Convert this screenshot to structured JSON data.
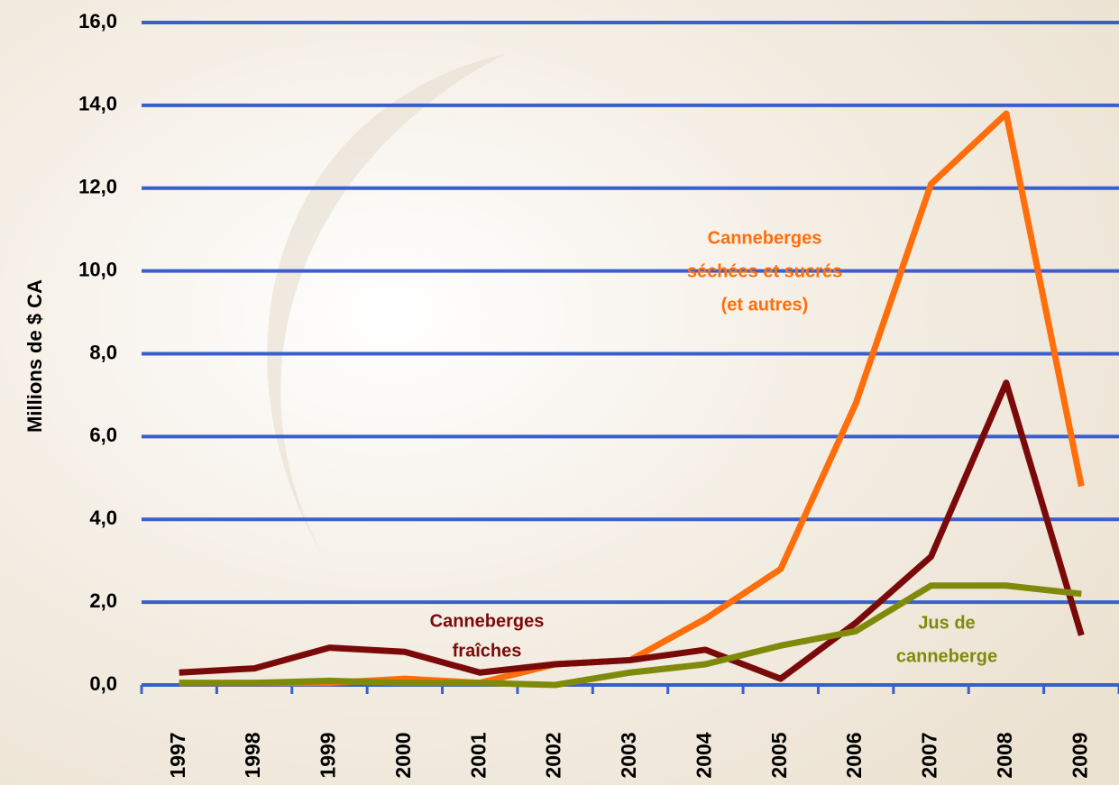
{
  "chart_data": {
    "type": "line",
    "y_label": "Millions de $ CA",
    "categories": [
      "1997",
      "1998",
      "1999",
      "2000",
      "2001",
      "2002",
      "2003",
      "2004",
      "2005",
      "2006",
      "2007",
      "2008",
      "2009"
    ],
    "series": [
      {
        "color": "#ff6e0a",
        "values": [
          0.05,
          0.05,
          0.05,
          0.15,
          0.05,
          0.5,
          0.6,
          1.6,
          2.8,
          6.8,
          12.1,
          13.8,
          4.8
        ]
      },
      {
        "color": "#7a0a0a",
        "values": [
          0.3,
          0.4,
          0.9,
          0.8,
          0.3,
          0.5,
          0.6,
          0.85,
          0.15,
          1.5,
          3.1,
          7.3,
          1.2
        ]
      },
      {
        "color": "#7f8a0a",
        "values": [
          0.05,
          0.05,
          0.1,
          0.05,
          0.05,
          0.0,
          0.3,
          0.5,
          0.95,
          1.3,
          2.4,
          2.4,
          2.2
        ]
      }
    ],
    "annotations": [
      {
        "color": "#ff6e0a",
        "lines": [
          "Canneberges",
          "séchées et sucrés",
          "(et autres)"
        ]
      },
      {
        "color": "#7a0a0a",
        "lines": [
          "Canneberges",
          "fraîches"
        ]
      },
      {
        "color": "#7f8a0a",
        "lines": [
          "Jus de",
          "canneberge"
        ]
      }
    ],
    "ylim": [
      0,
      16
    ],
    "yticks": [
      {
        "value": 0,
        "label": "0,0"
      },
      {
        "value": 2,
        "label": "2,0"
      },
      {
        "value": 4,
        "label": "4,0"
      },
      {
        "value": 6,
        "label": "6,0"
      },
      {
        "value": 8,
        "label": "8,0"
      },
      {
        "value": 10,
        "label": "10,0"
      },
      {
        "value": 12,
        "label": "12,0"
      },
      {
        "value": 14,
        "label": "14,0"
      },
      {
        "value": 16,
        "label": "16,0"
      }
    ],
    "grid": true,
    "grid_color": "#3a5fcd"
  }
}
